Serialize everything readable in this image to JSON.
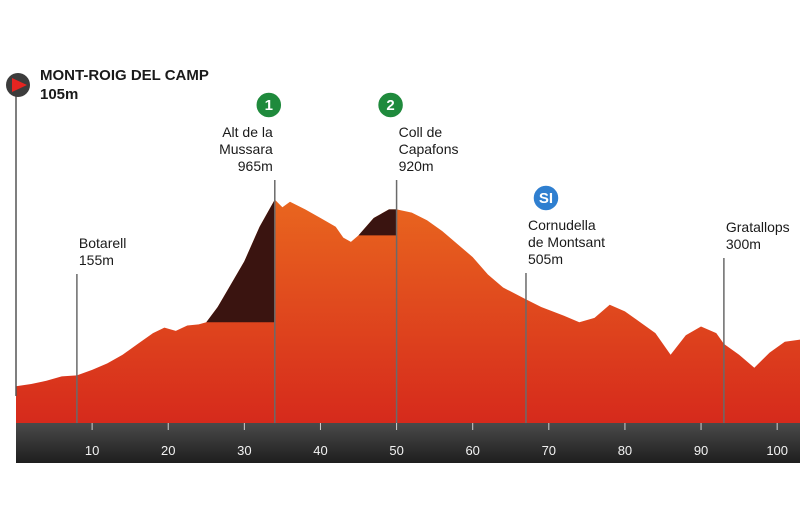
{
  "chart_data": {
    "type": "area",
    "x_unit": "km",
    "xlim": [
      0,
      103
    ],
    "ylim": [
      0,
      1050
    ],
    "x_ticks": [
      10,
      20,
      30,
      40,
      50,
      60,
      70,
      80,
      90,
      100
    ],
    "profile": [
      {
        "x": 0,
        "y": 105
      },
      {
        "x": 2,
        "y": 115
      },
      {
        "x": 4,
        "y": 130
      },
      {
        "x": 6,
        "y": 150
      },
      {
        "x": 8,
        "y": 155
      },
      {
        "x": 10,
        "y": 180
      },
      {
        "x": 12,
        "y": 210
      },
      {
        "x": 14,
        "y": 250
      },
      {
        "x": 16,
        "y": 300
      },
      {
        "x": 18,
        "y": 350
      },
      {
        "x": 19.5,
        "y": 375
      },
      {
        "x": 21,
        "y": 360
      },
      {
        "x": 22.5,
        "y": 385
      },
      {
        "x": 24,
        "y": 390
      },
      {
        "x": 25,
        "y": 400
      },
      {
        "x": 26.5,
        "y": 470
      },
      {
        "x": 28,
        "y": 560
      },
      {
        "x": 30,
        "y": 680
      },
      {
        "x": 32,
        "y": 840
      },
      {
        "x": 34,
        "y": 965
      },
      {
        "x": 35,
        "y": 930
      },
      {
        "x": 36,
        "y": 955
      },
      {
        "x": 38,
        "y": 920
      },
      {
        "x": 40,
        "y": 880
      },
      {
        "x": 42,
        "y": 840
      },
      {
        "x": 43,
        "y": 790
      },
      {
        "x": 44,
        "y": 770
      },
      {
        "x": 45,
        "y": 800
      },
      {
        "x": 47,
        "y": 880
      },
      {
        "x": 49,
        "y": 920
      },
      {
        "x": 50,
        "y": 920
      },
      {
        "x": 52,
        "y": 905
      },
      {
        "x": 54,
        "y": 870
      },
      {
        "x": 56,
        "y": 820
      },
      {
        "x": 58,
        "y": 760
      },
      {
        "x": 60,
        "y": 700
      },
      {
        "x": 62,
        "y": 620
      },
      {
        "x": 64,
        "y": 560
      },
      {
        "x": 67,
        "y": 505
      },
      {
        "x": 69,
        "y": 470
      },
      {
        "x": 72,
        "y": 430
      },
      {
        "x": 74,
        "y": 400
      },
      {
        "x": 76,
        "y": 420
      },
      {
        "x": 78,
        "y": 480
      },
      {
        "x": 80,
        "y": 450
      },
      {
        "x": 82,
        "y": 400
      },
      {
        "x": 84,
        "y": 350
      },
      {
        "x": 86,
        "y": 250
      },
      {
        "x": 88,
        "y": 340
      },
      {
        "x": 90,
        "y": 380
      },
      {
        "x": 92,
        "y": 350
      },
      {
        "x": 93,
        "y": 300
      },
      {
        "x": 95,
        "y": 250
      },
      {
        "x": 97,
        "y": 190
      },
      {
        "x": 99,
        "y": 260
      },
      {
        "x": 101,
        "y": 310
      },
      {
        "x": 103,
        "y": 320
      }
    ],
    "shaded_climbs": [
      {
        "from_x": 25,
        "to_x": 34,
        "base_y": 400
      },
      {
        "from_x": 45,
        "to_x": 50,
        "base_y": 800
      }
    ],
    "start": {
      "name": "MONT-ROIG DEL CAMP",
      "altitude": "105m",
      "x": 0
    },
    "waypoints": [
      {
        "name_lines": [
          "Botarell"
        ],
        "altitude": "155m",
        "x": 8,
        "y": 155
      },
      {
        "name_lines": [
          "Alt de la",
          "Mussara"
        ],
        "altitude": "965m",
        "x": 34,
        "y": 965,
        "badge": "1",
        "badge_color": "#1f8a3c"
      },
      {
        "name_lines": [
          "Coll de",
          "Capafons"
        ],
        "altitude": "920m",
        "x": 50,
        "y": 920,
        "badge": "2",
        "badge_color": "#1f8a3c"
      },
      {
        "name_lines": [
          "Cornudella",
          "de Montsant"
        ],
        "altitude": "505m",
        "x": 67,
        "y": 505,
        "badge": "SI",
        "badge_color": "#2f7fd0"
      },
      {
        "name_lines": [
          "Gratallops"
        ],
        "altitude": "300m",
        "x": 93,
        "y": 300
      }
    ],
    "colors": {
      "fill_top": "#e9661f",
      "fill_bottom": "#d62a1c",
      "climb_shade": "#3a1410",
      "axis_bar": "#2b2b2b",
      "start_icon": "#e52421"
    }
  }
}
